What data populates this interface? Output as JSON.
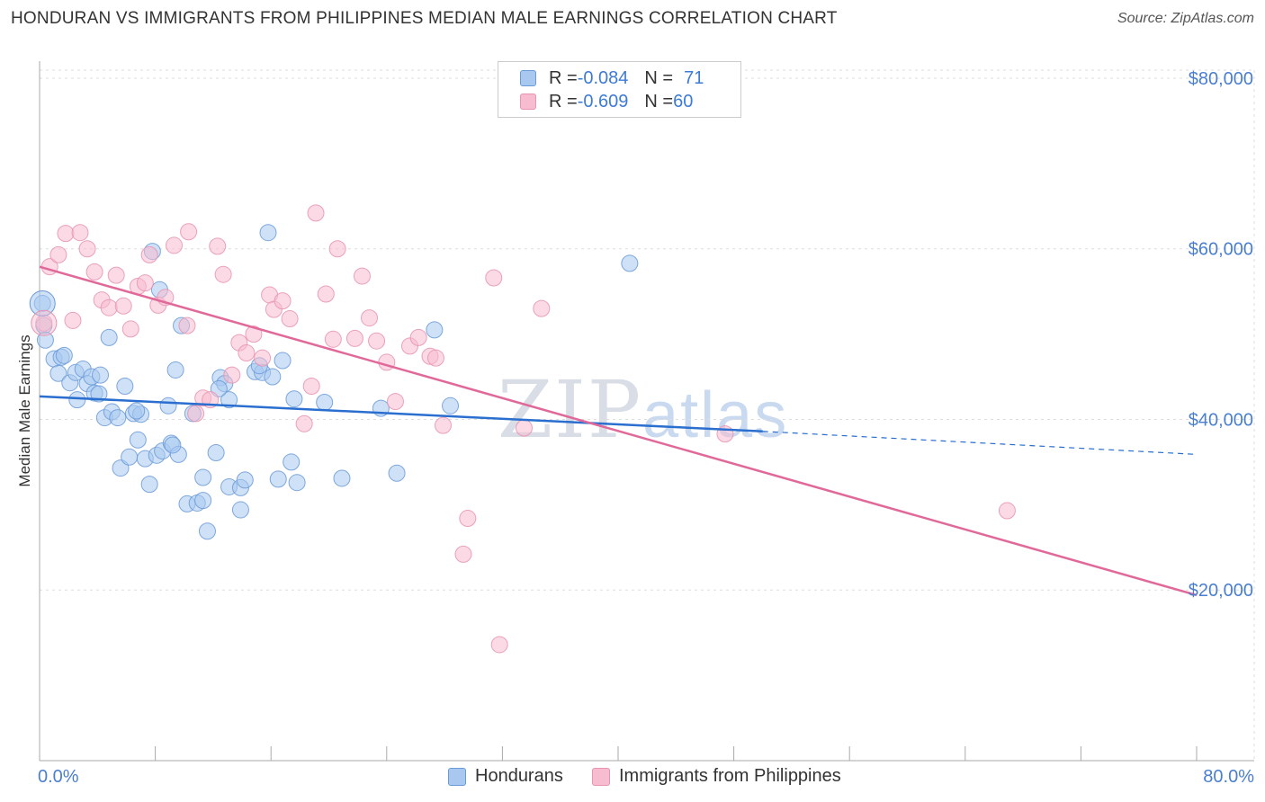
{
  "title": "HONDURAN VS IMMIGRANTS FROM PHILIPPINES MEDIAN MALE EARNINGS CORRELATION CHART",
  "source": "Source: ZipAtlas.com",
  "watermark": {
    "zip": "ZIP",
    "atlas": "atlas"
  },
  "legend": {
    "series1": {
      "r_label": "R = ",
      "r_value": "-0.084",
      "n_label": "N = ",
      "n_value": "71"
    },
    "series2": {
      "r_label": "R = ",
      "r_value": "-0.609",
      "n_label": "N = ",
      "n_value": "60"
    }
  },
  "colors": {
    "blue_fill": "#a8c8f0",
    "blue_stroke": "#6a9ad8",
    "blue_line": "#2a6fcf",
    "pink_fill": "#f7bcd0",
    "pink_stroke": "#e893b0",
    "pink_line": "#e0699a",
    "grid": "#dddddd",
    "axis_text": "#4a7fd0"
  },
  "chart_data": {
    "type": "scatter",
    "title": "HONDURAN VS IMMIGRANTS FROM PHILIPPINES MEDIAN MALE EARNINGS CORRELATION CHART",
    "xlabel": "",
    "ylabel": "Median Male Earnings",
    "xlim": [
      0,
      80
    ],
    "ylim": [
      0,
      82000
    ],
    "x_tick_labels": [
      "0.0%",
      "80.0%"
    ],
    "y_ticks": [
      20000,
      40000,
      60000,
      80000
    ],
    "y_tick_labels": [
      "$20,000",
      "$40,000",
      "$60,000",
      "$80,000"
    ],
    "grid": true,
    "legend_position": "bottom",
    "series": [
      {
        "name": "Hondurans",
        "color": "#6a9ad8",
        "r": -0.084,
        "n": 71,
        "trend": {
          "x": [
            0,
            50
          ],
          "y": [
            42700,
            38600
          ],
          "dashed_to": [
            80,
            35900
          ]
        },
        "points": [
          [
            0.2,
            53600
          ],
          [
            0.3,
            51000
          ],
          [
            0.4,
            49300
          ],
          [
            1.0,
            47100
          ],
          [
            1.3,
            45400
          ],
          [
            1.5,
            47300
          ],
          [
            1.7,
            47500
          ],
          [
            2.1,
            44300
          ],
          [
            2.5,
            45500
          ],
          [
            2.6,
            42300
          ],
          [
            3.0,
            45900
          ],
          [
            3.3,
            44200
          ],
          [
            3.6,
            45000
          ],
          [
            3.8,
            43100
          ],
          [
            4.2,
            45200
          ],
          [
            4.5,
            40200
          ],
          [
            4.8,
            49600
          ],
          [
            5.0,
            40900
          ],
          [
            5.4,
            40200
          ],
          [
            5.6,
            34300
          ],
          [
            5.9,
            43900
          ],
          [
            6.2,
            35600
          ],
          [
            6.5,
            40700
          ],
          [
            6.8,
            37600
          ],
          [
            7.0,
            40600
          ],
          [
            7.3,
            35400
          ],
          [
            7.6,
            32400
          ],
          [
            7.8,
            59700
          ],
          [
            8.1,
            35800
          ],
          [
            8.3,
            55200
          ],
          [
            8.5,
            36300
          ],
          [
            8.9,
            41600
          ],
          [
            9.1,
            37200
          ],
          [
            9.4,
            45800
          ],
          [
            9.6,
            35900
          ],
          [
            9.8,
            51000
          ],
          [
            10.2,
            30100
          ],
          [
            10.6,
            40700
          ],
          [
            10.9,
            30200
          ],
          [
            11.3,
            33200
          ],
          [
            11.3,
            30500
          ],
          [
            11.6,
            26900
          ],
          [
            12.2,
            36100
          ],
          [
            12.5,
            44900
          ],
          [
            12.8,
            44200
          ],
          [
            13.1,
            32100
          ],
          [
            13.1,
            42300
          ],
          [
            13.9,
            32000
          ],
          [
            13.9,
            29400
          ],
          [
            14.2,
            32900
          ],
          [
            14.9,
            45600
          ],
          [
            15.4,
            45500
          ],
          [
            15.8,
            61900
          ],
          [
            16.1,
            45000
          ],
          [
            16.5,
            33000
          ],
          [
            16.8,
            46900
          ],
          [
            17.4,
            35000
          ],
          [
            17.6,
            42400
          ],
          [
            17.8,
            32600
          ],
          [
            19.7,
            42000
          ],
          [
            20.9,
            33100
          ],
          [
            23.6,
            41300
          ],
          [
            24.7,
            33700
          ],
          [
            27.3,
            50500
          ],
          [
            28.4,
            41600
          ],
          [
            40.8,
            58300
          ],
          [
            4.1,
            43000
          ],
          [
            6.7,
            41000
          ],
          [
            9.2,
            37000
          ],
          [
            12.4,
            43600
          ],
          [
            15.2,
            46300
          ]
        ]
      },
      {
        "name": "Immigrants from Philippines",
        "color": "#e893b0",
        "r": -0.609,
        "n": 60,
        "trend": {
          "x": [
            0,
            80
          ],
          "y": [
            57900,
            19400
          ]
        },
        "points": [
          [
            0.3,
            51300
          ],
          [
            0.7,
            57900
          ],
          [
            1.3,
            59300
          ],
          [
            1.8,
            61800
          ],
          [
            2.3,
            51600
          ],
          [
            2.8,
            61900
          ],
          [
            3.3,
            60000
          ],
          [
            3.8,
            57300
          ],
          [
            4.3,
            54000
          ],
          [
            4.8,
            53100
          ],
          [
            5.3,
            56900
          ],
          [
            5.8,
            53300
          ],
          [
            6.3,
            50600
          ],
          [
            6.8,
            55600
          ],
          [
            7.3,
            56000
          ],
          [
            7.6,
            59300
          ],
          [
            8.2,
            53400
          ],
          [
            8.7,
            54300
          ],
          [
            9.3,
            60400
          ],
          [
            10.2,
            51000
          ],
          [
            10.3,
            62000
          ],
          [
            10.8,
            40700
          ],
          [
            11.3,
            42500
          ],
          [
            11.8,
            42300
          ],
          [
            12.3,
            60300
          ],
          [
            12.7,
            57000
          ],
          [
            13.3,
            45200
          ],
          [
            13.8,
            49000
          ],
          [
            14.3,
            47800
          ],
          [
            14.8,
            50000
          ],
          [
            15.4,
            47200
          ],
          [
            15.9,
            54600
          ],
          [
            16.2,
            52900
          ],
          [
            16.8,
            53900
          ],
          [
            17.3,
            51800
          ],
          [
            18.3,
            39500
          ],
          [
            18.8,
            43900
          ],
          [
            19.1,
            64200
          ],
          [
            19.8,
            54700
          ],
          [
            20.3,
            49400
          ],
          [
            20.6,
            60000
          ],
          [
            21.8,
            49500
          ],
          [
            22.3,
            56800
          ],
          [
            22.8,
            51900
          ],
          [
            23.3,
            49200
          ],
          [
            24.0,
            46700
          ],
          [
            24.6,
            42100
          ],
          [
            25.6,
            48600
          ],
          [
            26.2,
            49600
          ],
          [
            27.0,
            47400
          ],
          [
            27.4,
            47200
          ],
          [
            27.9,
            39300
          ],
          [
            29.6,
            28400
          ],
          [
            29.3,
            24200
          ],
          [
            31.4,
            56600
          ],
          [
            31.8,
            13600
          ],
          [
            33.5,
            39000
          ],
          [
            34.7,
            53000
          ],
          [
            47.4,
            38300
          ],
          [
            66.9,
            29300
          ]
        ]
      }
    ]
  },
  "bottom_legend": {
    "item1": "Hondurans",
    "item2": "Immigrants from Philippines"
  }
}
